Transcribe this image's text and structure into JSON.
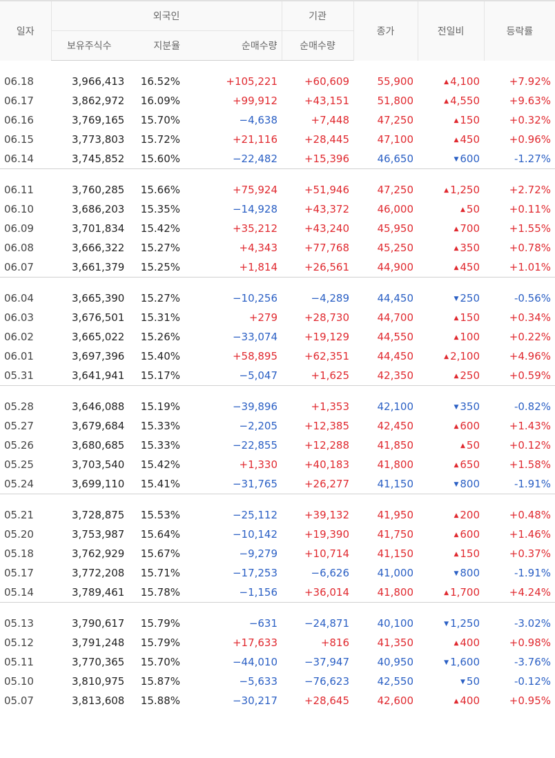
{
  "header": {
    "date": "일자",
    "foreign": "외국인",
    "institution": "기관",
    "close": "종가",
    "change": "전일비",
    "rate": "등락률",
    "holdings": "보유주식수",
    "share": "지분율",
    "foreign_net": "순매수량",
    "inst_net": "순매수량"
  },
  "groups": [
    [
      {
        "d": "06.18",
        "h": "3,966,413",
        "s": "16.52%",
        "f": "+105,221",
        "i": "+60,609",
        "c": "55,900",
        "ch": "4,100",
        "r": "+7.92%",
        "dir": "up"
      },
      {
        "d": "06.17",
        "h": "3,862,972",
        "s": "16.09%",
        "f": "+99,912",
        "i": "+43,151",
        "c": "51,800",
        "ch": "4,550",
        "r": "+9.63%",
        "dir": "up"
      },
      {
        "d": "06.16",
        "h": "3,769,165",
        "s": "15.70%",
        "f": "−4,638",
        "i": "+7,448",
        "c": "47,250",
        "ch": "150",
        "r": "+0.32%",
        "dir": "up"
      },
      {
        "d": "06.15",
        "h": "3,773,803",
        "s": "15.72%",
        "f": "+21,116",
        "i": "+28,445",
        "c": "47,100",
        "ch": "450",
        "r": "+0.96%",
        "dir": "up"
      },
      {
        "d": "06.14",
        "h": "3,745,852",
        "s": "15.60%",
        "f": "−22,482",
        "i": "+15,396",
        "c": "46,650",
        "ch": "600",
        "r": "-1.27%",
        "dir": "dn"
      }
    ],
    [
      {
        "d": "06.11",
        "h": "3,760,285",
        "s": "15.66%",
        "f": "+75,924",
        "i": "+51,946",
        "c": "47,250",
        "ch": "1,250",
        "r": "+2.72%",
        "dir": "up"
      },
      {
        "d": "06.10",
        "h": "3,686,203",
        "s": "15.35%",
        "f": "−14,928",
        "i": "+43,372",
        "c": "46,000",
        "ch": "50",
        "r": "+0.11%",
        "dir": "up"
      },
      {
        "d": "06.09",
        "h": "3,701,834",
        "s": "15.42%",
        "f": "+35,212",
        "i": "+43,240",
        "c": "45,950",
        "ch": "700",
        "r": "+1.55%",
        "dir": "up"
      },
      {
        "d": "06.08",
        "h": "3,666,322",
        "s": "15.27%",
        "f": "+4,343",
        "i": "+77,768",
        "c": "45,250",
        "ch": "350",
        "r": "+0.78%",
        "dir": "up"
      },
      {
        "d": "06.07",
        "h": "3,661,379",
        "s": "15.25%",
        "f": "+1,814",
        "i": "+26,561",
        "c": "44,900",
        "ch": "450",
        "r": "+1.01%",
        "dir": "up"
      }
    ],
    [
      {
        "d": "06.04",
        "h": "3,665,390",
        "s": "15.27%",
        "f": "−10,256",
        "i": "−4,289",
        "c": "44,450",
        "ch": "250",
        "r": "-0.56%",
        "dir": "dn"
      },
      {
        "d": "06.03",
        "h": "3,676,501",
        "s": "15.31%",
        "f": "+279",
        "i": "+28,730",
        "c": "44,700",
        "ch": "150",
        "r": "+0.34%",
        "dir": "up"
      },
      {
        "d": "06.02",
        "h": "3,665,022",
        "s": "15.26%",
        "f": "−33,074",
        "i": "+19,129",
        "c": "44,550",
        "ch": "100",
        "r": "+0.22%",
        "dir": "up"
      },
      {
        "d": "06.01",
        "h": "3,697,396",
        "s": "15.40%",
        "f": "+58,895",
        "i": "+62,351",
        "c": "44,450",
        "ch": "2,100",
        "r": "+4.96%",
        "dir": "up"
      },
      {
        "d": "05.31",
        "h": "3,641,941",
        "s": "15.17%",
        "f": "−5,047",
        "i": "+1,625",
        "c": "42,350",
        "ch": "250",
        "r": "+0.59%",
        "dir": "up"
      }
    ],
    [
      {
        "d": "05.28",
        "h": "3,646,088",
        "s": "15.19%",
        "f": "−39,896",
        "i": "+1,353",
        "c": "42,100",
        "ch": "350",
        "r": "-0.82%",
        "dir": "dn"
      },
      {
        "d": "05.27",
        "h": "3,679,684",
        "s": "15.33%",
        "f": "−2,205",
        "i": "+12,385",
        "c": "42,450",
        "ch": "600",
        "r": "+1.43%",
        "dir": "up"
      },
      {
        "d": "05.26",
        "h": "3,680,685",
        "s": "15.33%",
        "f": "−22,855",
        "i": "+12,288",
        "c": "41,850",
        "ch": "50",
        "r": "+0.12%",
        "dir": "up"
      },
      {
        "d": "05.25",
        "h": "3,703,540",
        "s": "15.42%",
        "f": "+1,330",
        "i": "+40,183",
        "c": "41,800",
        "ch": "650",
        "r": "+1.58%",
        "dir": "up"
      },
      {
        "d": "05.24",
        "h": "3,699,110",
        "s": "15.41%",
        "f": "−31,765",
        "i": "+26,277",
        "c": "41,150",
        "ch": "800",
        "r": "-1.91%",
        "dir": "dn"
      }
    ],
    [
      {
        "d": "05.21",
        "h": "3,728,875",
        "s": "15.53%",
        "f": "−25,112",
        "i": "+39,132",
        "c": "41,950",
        "ch": "200",
        "r": "+0.48%",
        "dir": "up"
      },
      {
        "d": "05.20",
        "h": "3,753,987",
        "s": "15.64%",
        "f": "−10,142",
        "i": "+19,390",
        "c": "41,750",
        "ch": "600",
        "r": "+1.46%",
        "dir": "up"
      },
      {
        "d": "05.18",
        "h": "3,762,929",
        "s": "15.67%",
        "f": "−9,279",
        "i": "+10,714",
        "c": "41,150",
        "ch": "150",
        "r": "+0.37%",
        "dir": "up"
      },
      {
        "d": "05.17",
        "h": "3,772,208",
        "s": "15.71%",
        "f": "−17,253",
        "i": "−6,626",
        "c": "41,000",
        "ch": "800",
        "r": "-1.91%",
        "dir": "dn"
      },
      {
        "d": "05.14",
        "h": "3,789,461",
        "s": "15.78%",
        "f": "−1,156",
        "i": "+36,014",
        "c": "41,800",
        "ch": "1,700",
        "r": "+4.24%",
        "dir": "up"
      }
    ],
    [
      {
        "d": "05.13",
        "h": "3,790,617",
        "s": "15.79%",
        "f": "−631",
        "i": "−24,871",
        "c": "40,100",
        "ch": "1,250",
        "r": "-3.02%",
        "dir": "dn"
      },
      {
        "d": "05.12",
        "h": "3,791,248",
        "s": "15.79%",
        "f": "+17,633",
        "i": "+816",
        "c": "41,350",
        "ch": "400",
        "r": "+0.98%",
        "dir": "up"
      },
      {
        "d": "05.11",
        "h": "3,770,365",
        "s": "15.70%",
        "f": "−44,010",
        "i": "−37,947",
        "c": "40,950",
        "ch": "1,600",
        "r": "-3.76%",
        "dir": "dn"
      },
      {
        "d": "05.10",
        "h": "3,810,975",
        "s": "15.87%",
        "f": "−5,633",
        "i": "−76,623",
        "c": "42,550",
        "ch": "50",
        "r": "-0.12%",
        "dir": "dn"
      },
      {
        "d": "05.07",
        "h": "3,813,608",
        "s": "15.88%",
        "f": "−30,217",
        "i": "+28,645",
        "c": "42,600",
        "ch": "400",
        "r": "+0.95%",
        "dir": "up"
      }
    ]
  ],
  "colors": {
    "up": "#e0292f",
    "down": "#2a5fc4"
  },
  "icons": {
    "up": "triangle-up-icon",
    "down": "triangle-down-icon"
  }
}
